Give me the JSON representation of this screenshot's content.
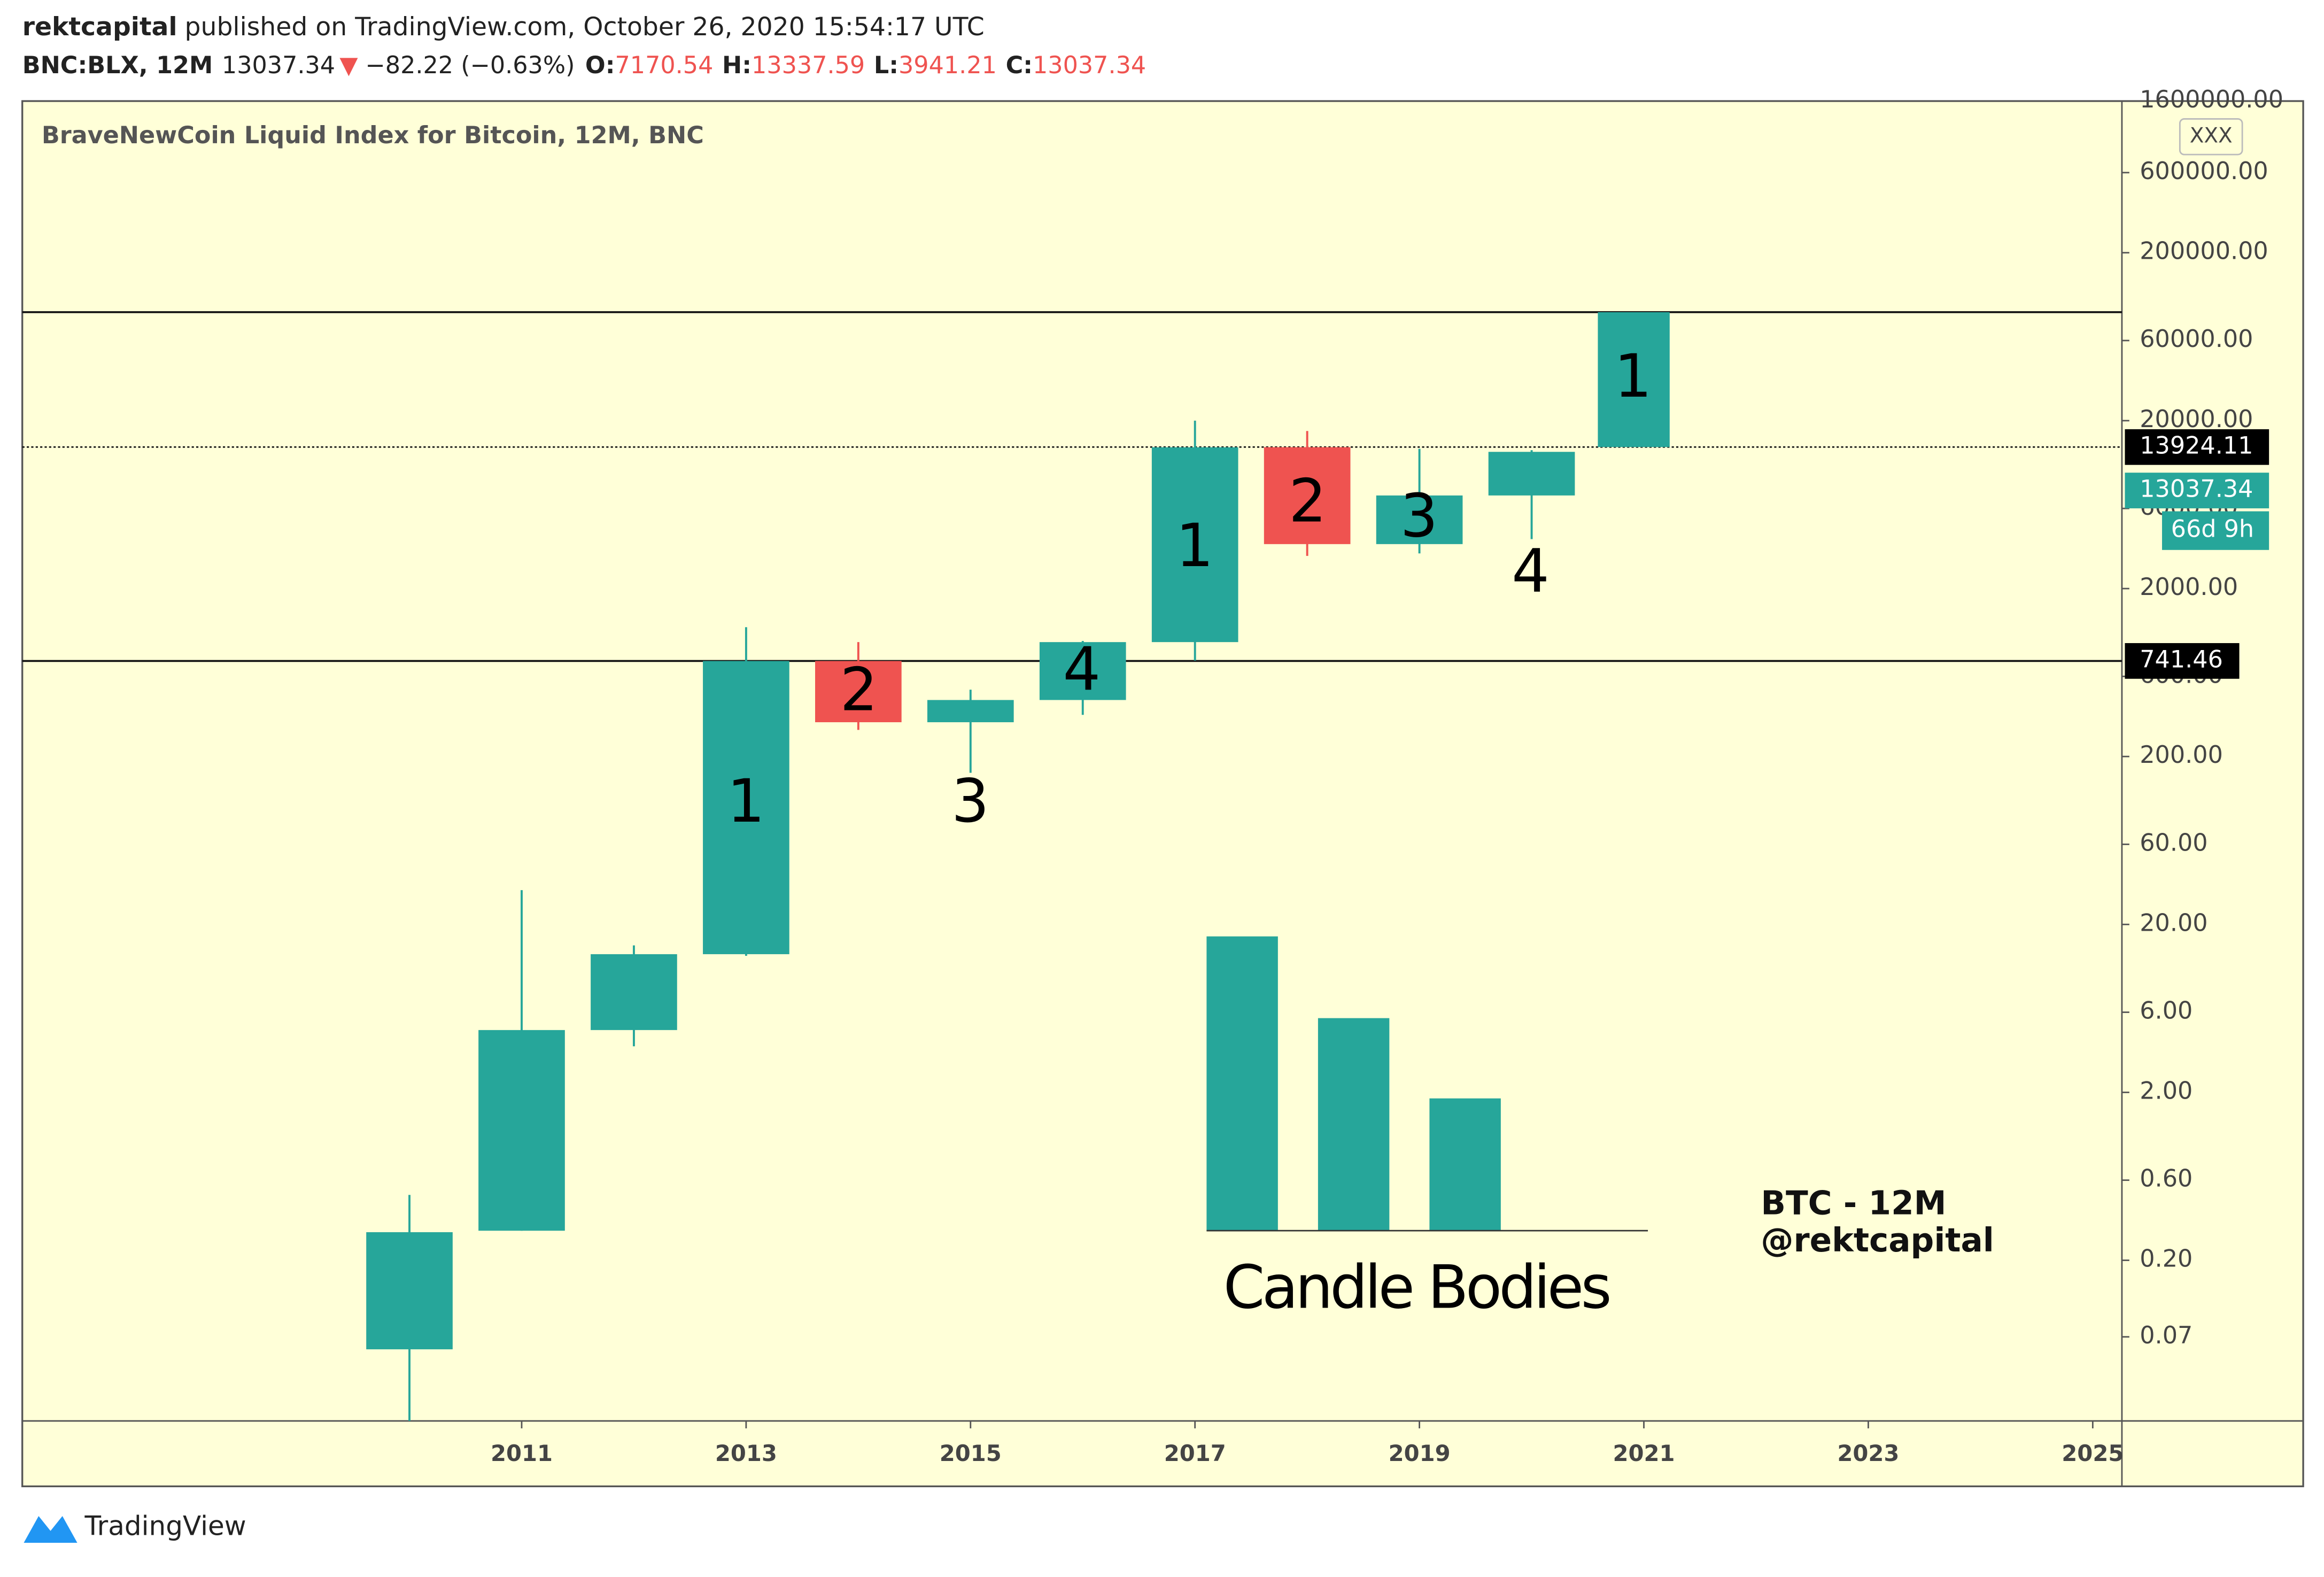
{
  "header": {
    "author": "rektcapital",
    "published": "published on TradingView.com, October 26, 2020 15:54:17 UTC",
    "symbol": "BNC:BLX, 12M",
    "arrow": "▼",
    "change": "−82.22 (−0.63%)",
    "o_label": "O:",
    "h_label": "H:",
    "l_label": "L:",
    "c_label": "C:"
  },
  "chart_data": {
    "type": "candlestick",
    "title": "BraveNewCoin Liquid Index for Bitcoin, 12M, BNC",
    "x": [
      2010,
      2011,
      2012,
      2013,
      2014,
      2015,
      2016,
      2017,
      2018,
      2019,
      2020
    ],
    "open": [
      0.059,
      0.3,
      4.7,
      13.3,
      741,
      320,
      434,
      960,
      13900,
      3680,
      7170.54
    ],
    "high": [
      0.49,
      32,
      15,
      1178,
      960,
      500,
      975,
      20000,
      17350,
      13600,
      13337.59
    ],
    "low": [
      0.022,
      0.3,
      3.76,
      13,
      288,
      160,
      354,
      745,
      3130,
      3240,
      3941.21
    ],
    "close": [
      0.294,
      4.7,
      13.3,
      741,
      320,
      434,
      960,
      13880,
      3680,
      7170,
      13037.34
    ],
    "up_color": "#26a69a",
    "down_color": "#ef5350",
    "log_scale": true,
    "ylim": [
      0.0221,
      1600000
    ],
    "yticks": [
      {
        "value": 1600000,
        "label": "1600000.00"
      },
      {
        "value": 600000,
        "label": "600000.00"
      },
      {
        "value": 200000,
        "label": "200000.00"
      },
      {
        "value": 60000,
        "label": "60000.00"
      },
      {
        "value": 20000,
        "label": "20000.00"
      },
      {
        "value": 6000,
        "label": "6000.00"
      },
      {
        "value": 2000,
        "label": "2000.00"
      },
      {
        "value": 600,
        "label": "600.00"
      },
      {
        "value": 200,
        "label": "200.00"
      },
      {
        "value": 60,
        "label": "60.00"
      },
      {
        "value": 20,
        "label": "20.00"
      },
      {
        "value": 6,
        "label": "6.00"
      },
      {
        "value": 2,
        "label": "2.00"
      },
      {
        "value": 0.6,
        "label": "0.60"
      },
      {
        "value": 0.2,
        "label": "0.20"
      },
      {
        "value": 0.07,
        "label": "0.07"
      }
    ],
    "xlim": [
      2006.55,
      2025.26
    ],
    "xticks": [
      2011,
      2013,
      2015,
      2017,
      2019,
      2021,
      2023,
      2025
    ],
    "levels": [
      {
        "value": 88500,
        "style": "solid",
        "labeled": false
      },
      {
        "value": 13924.11,
        "style": "dotted",
        "labeled": true
      },
      {
        "value": 741.46,
        "style": "solid",
        "labeled": true
      }
    ],
    "boxes": [
      {
        "x0": 2020.59,
        "x1": 2021.23,
        "low": 13924.11,
        "high": 88500
      }
    ],
    "annotations": [
      "1",
      "2",
      "3",
      "4",
      "1",
      "2",
      "3",
      "4",
      "1"
    ],
    "countdown": "66d 9h",
    "button": "XXX"
  },
  "watermark": [
    "BTC - 12M",
    "@rektcapital"
  ],
  "inset_label": "Candle Bodies",
  "footer": "TradingView"
}
